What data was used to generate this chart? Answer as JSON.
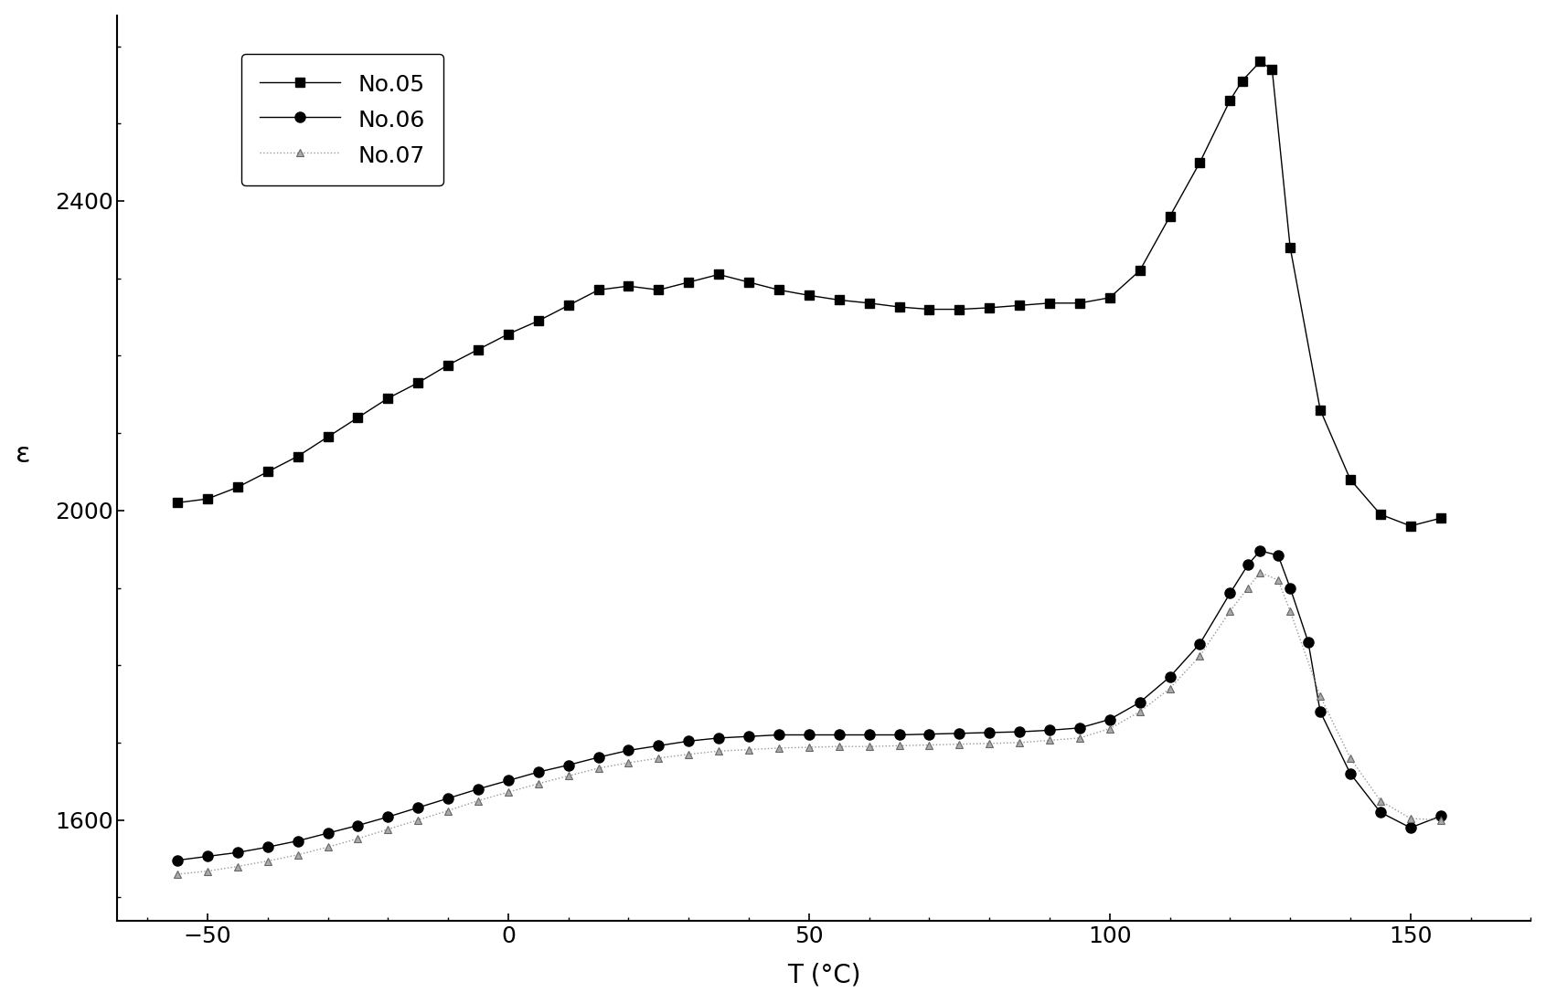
{
  "title": "",
  "xlabel": "T (°C)",
  "ylabel": "ε",
  "xlim": [
    -65,
    170
  ],
  "ylim": [
    1470,
    2640
  ],
  "xticks": [
    -50,
    0,
    50,
    100,
    150
  ],
  "yticks": [
    1600,
    2000,
    2400
  ],
  "background_color": "#ffffff",
  "series": [
    {
      "label": "No.05",
      "color": "#000000",
      "linestyle": "-",
      "marker": "s",
      "markersize": 7,
      "linewidth": 1.0,
      "x": [
        -55,
        -50,
        -45,
        -40,
        -35,
        -30,
        -25,
        -20,
        -15,
        -10,
        -5,
        0,
        5,
        10,
        15,
        20,
        25,
        30,
        35,
        40,
        45,
        50,
        55,
        60,
        65,
        70,
        75,
        80,
        85,
        90,
        95,
        100,
        105,
        110,
        115,
        120,
        122,
        125,
        127,
        130,
        135,
        140,
        145,
        150,
        155
      ],
      "y": [
        2010,
        2015,
        2030,
        2050,
        2070,
        2095,
        2120,
        2145,
        2165,
        2188,
        2208,
        2228,
        2245,
        2265,
        2285,
        2290,
        2285,
        2295,
        2305,
        2295,
        2285,
        2278,
        2272,
        2268,
        2263,
        2260,
        2260,
        2262,
        2265,
        2268,
        2268,
        2275,
        2310,
        2380,
        2450,
        2530,
        2555,
        2580,
        2570,
        2340,
        2130,
        2040,
        1995,
        1980,
        1990
      ]
    },
    {
      "label": "No.06",
      "color": "#000000",
      "linestyle": "-",
      "marker": "o",
      "markersize": 8,
      "linewidth": 1.0,
      "x": [
        -55,
        -50,
        -45,
        -40,
        -35,
        -30,
        -25,
        -20,
        -15,
        -10,
        -5,
        0,
        5,
        10,
        15,
        20,
        25,
        30,
        35,
        40,
        45,
        50,
        55,
        60,
        65,
        70,
        75,
        80,
        85,
        90,
        95,
        100,
        105,
        110,
        115,
        120,
        123,
        125,
        128,
        130,
        133,
        135,
        140,
        145,
        150,
        155
      ],
      "y": [
        1548,
        1553,
        1558,
        1565,
        1573,
        1583,
        1593,
        1604,
        1616,
        1628,
        1640,
        1651,
        1662,
        1671,
        1681,
        1690,
        1696,
        1702,
        1706,
        1708,
        1710,
        1710,
        1710,
        1710,
        1710,
        1711,
        1712,
        1713,
        1714,
        1716,
        1719,
        1730,
        1752,
        1785,
        1828,
        1893,
        1930,
        1948,
        1942,
        1900,
        1830,
        1740,
        1660,
        1610,
        1590,
        1605
      ]
    },
    {
      "label": "No.07",
      "color": "#888888",
      "linestyle": ":",
      "marker": "^",
      "markersize": 6,
      "linewidth": 1.0,
      "x": [
        -55,
        -50,
        -45,
        -40,
        -35,
        -30,
        -25,
        -20,
        -15,
        -10,
        -5,
        0,
        5,
        10,
        15,
        20,
        25,
        30,
        35,
        40,
        45,
        50,
        55,
        60,
        65,
        70,
        75,
        80,
        85,
        90,
        95,
        100,
        105,
        110,
        115,
        120,
        123,
        125,
        128,
        130,
        135,
        140,
        145,
        150,
        155
      ],
      "y": [
        1530,
        1534,
        1540,
        1547,
        1555,
        1565,
        1576,
        1588,
        1600,
        1612,
        1625,
        1636,
        1647,
        1657,
        1667,
        1674,
        1680,
        1685,
        1689,
        1691,
        1693,
        1694,
        1695,
        1695,
        1696,
        1697,
        1698,
        1699,
        1700,
        1703,
        1706,
        1718,
        1740,
        1770,
        1812,
        1870,
        1900,
        1920,
        1910,
        1870,
        1760,
        1680,
        1625,
        1602,
        1600
      ]
    }
  ]
}
